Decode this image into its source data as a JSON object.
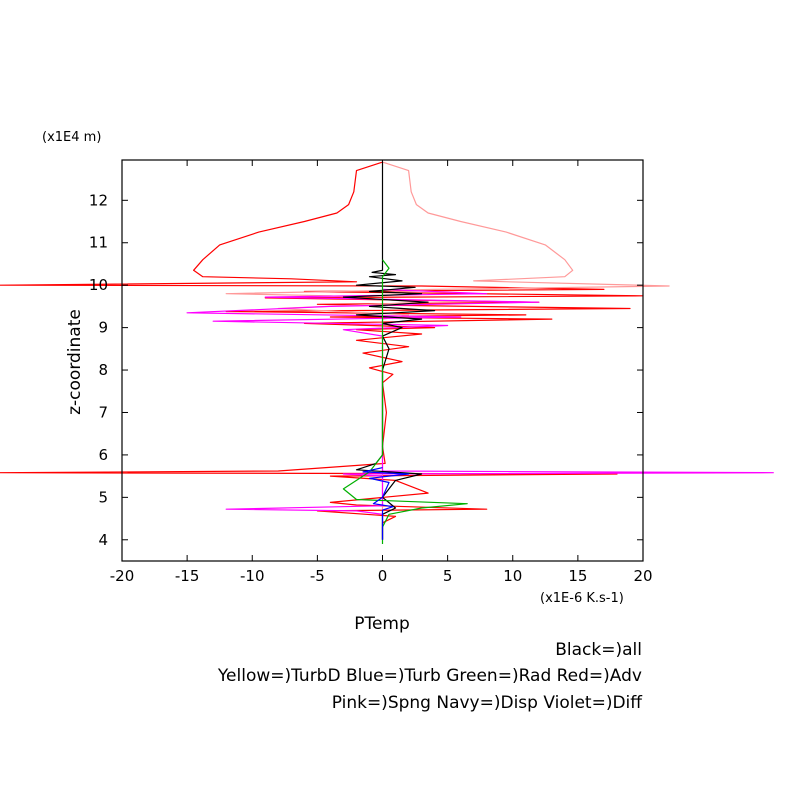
{
  "chart_data": {
    "type": "line",
    "title": "",
    "xlabel": "PTemp",
    "ylabel": "z-coordinate",
    "x_unit": "(x1E-6 K.s-1)",
    "y_unit": "(x1E4 m)",
    "xlim": [
      -20,
      20
    ],
    "ylim": [
      3.5,
      12.95
    ],
    "x_ticks": [
      "-20",
      "-15",
      "-10",
      "-5",
      "0",
      "5",
      "10",
      "15",
      "20"
    ],
    "y_ticks": [
      "4",
      "5",
      "6",
      "7",
      "8",
      "9",
      "10",
      "11",
      "12"
    ],
    "legend_lines": [
      "Black=)all",
      "Yellow=)TurbD Blue=)Turb Green=)Rad Red=)Adv",
      "Pink=)Spng Navy=)Disp Violet=)Diff"
    ],
    "series": [
      {
        "color": "#ff0000",
        "points": [
          [
            0,
            12.9
          ],
          [
            -2,
            12.7
          ],
          [
            -2.2,
            12.2
          ],
          [
            -2.6,
            11.9
          ],
          [
            -3.5,
            11.7
          ],
          [
            -6,
            11.5
          ],
          [
            -9.5,
            11.25
          ],
          [
            -12.5,
            10.95
          ],
          [
            -13.8,
            10.6
          ],
          [
            -14.5,
            10.35
          ],
          [
            -13.8,
            10.2
          ],
          [
            -7,
            10.15
          ],
          [
            -2,
            10.08
          ],
          [
            -30,
            10.0
          ],
          [
            3,
            9.98
          ],
          [
            17,
            9.9
          ],
          [
            -6,
            9.85
          ],
          [
            20,
            9.75
          ],
          [
            -9,
            9.7
          ],
          [
            12,
            9.6
          ],
          [
            -5,
            9.55
          ],
          [
            19,
            9.45
          ],
          [
            -12,
            9.38
          ],
          [
            11,
            9.3
          ],
          [
            -4,
            9.25
          ],
          [
            13,
            9.2
          ],
          [
            -6,
            9.1
          ],
          [
            4,
            9.0
          ],
          [
            -2,
            8.95
          ],
          [
            3,
            8.85
          ],
          [
            -2,
            8.7
          ],
          [
            2,
            8.55
          ],
          [
            -1.5,
            8.4
          ],
          [
            1.5,
            8.2
          ],
          [
            -1,
            8.05
          ],
          [
            0.8,
            7.9
          ],
          [
            0,
            7.7
          ],
          [
            0.3,
            7.0
          ],
          [
            0,
            6.2
          ],
          [
            0.2,
            5.8
          ],
          [
            -8,
            5.62
          ],
          [
            -30,
            5.58
          ],
          [
            18,
            5.55
          ],
          [
            -4,
            5.5
          ],
          [
            1,
            5.4
          ],
          [
            3.5,
            5.1
          ],
          [
            -4,
            4.88
          ],
          [
            -2,
            4.82
          ],
          [
            8,
            4.72
          ],
          [
            -5,
            4.68
          ],
          [
            1,
            4.55
          ],
          [
            0,
            4.4
          ],
          [
            0,
            4.0
          ]
        ]
      },
      {
        "color": "#ff9999",
        "points": [
          [
            0,
            12.9
          ],
          [
            2,
            12.7
          ],
          [
            2.2,
            12.2
          ],
          [
            2.6,
            11.9
          ],
          [
            3.5,
            11.7
          ],
          [
            6,
            11.5
          ],
          [
            9.5,
            11.25
          ],
          [
            12.5,
            10.95
          ],
          [
            14,
            10.6
          ],
          [
            14.6,
            10.35
          ],
          [
            14,
            10.2
          ],
          [
            7,
            10.1
          ],
          [
            22,
            9.98
          ],
          [
            4,
            9.9
          ],
          [
            -12,
            9.8
          ],
          [
            -4,
            9.75
          ],
          [
            3,
            9.6
          ],
          [
            -8,
            9.45
          ],
          [
            2,
            9.3
          ],
          [
            0,
            9.2
          ],
          [
            0,
            4.0
          ]
        ]
      },
      {
        "color": "#ff00ff",
        "points": [
          [
            0,
            9.9
          ],
          [
            8,
            9.8
          ],
          [
            -9,
            9.72
          ],
          [
            12,
            9.6
          ],
          [
            -4,
            9.5
          ],
          [
            -15,
            9.35
          ],
          [
            6,
            9.25
          ],
          [
            -13,
            9.15
          ],
          [
            5,
            9.05
          ],
          [
            -3,
            8.95
          ],
          [
            0,
            8.8
          ],
          [
            0,
            5.62
          ],
          [
            30,
            5.58
          ],
          [
            -3,
            5.55
          ],
          [
            0,
            5.5
          ],
          [
            0,
            4.8
          ],
          [
            -12,
            4.72
          ],
          [
            -2,
            4.68
          ],
          [
            0,
            4.6
          ]
        ]
      },
      {
        "color": "#000000",
        "points": [
          [
            0,
            12.9
          ],
          [
            0,
            10.35
          ],
          [
            -0.8,
            10.3
          ],
          [
            1,
            10.25
          ],
          [
            -1,
            10.2
          ],
          [
            1.5,
            10.1
          ],
          [
            -2,
            10.0
          ],
          [
            2.5,
            9.95
          ],
          [
            -1,
            9.85
          ],
          [
            3,
            9.8
          ],
          [
            -3,
            9.72
          ],
          [
            3.5,
            9.6
          ],
          [
            -1,
            9.5
          ],
          [
            4,
            9.4
          ],
          [
            -2,
            9.3
          ],
          [
            3,
            9.2
          ],
          [
            0,
            9.1
          ],
          [
            1.5,
            9.0
          ],
          [
            0,
            8.8
          ],
          [
            0.5,
            8.5
          ],
          [
            0,
            8.0
          ],
          [
            0,
            6.0
          ],
          [
            -0.5,
            5.8
          ],
          [
            -2,
            5.65
          ],
          [
            3,
            5.55
          ],
          [
            1,
            5.4
          ],
          [
            0,
            5.0
          ],
          [
            1,
            4.75
          ],
          [
            0,
            4.6
          ],
          [
            0,
            4.0
          ]
        ]
      },
      {
        "color": "#00b000",
        "points": [
          [
            0,
            10.6
          ],
          [
            0.5,
            10.4
          ],
          [
            0,
            10.2
          ],
          [
            0,
            6.0
          ],
          [
            -1,
            5.6
          ],
          [
            -3,
            5.2
          ],
          [
            -2,
            4.95
          ],
          [
            6.5,
            4.85
          ],
          [
            3,
            4.75
          ],
          [
            0.5,
            4.6
          ],
          [
            0,
            4.3
          ],
          [
            0,
            3.9
          ]
        ]
      },
      {
        "color": "#0000ff",
        "points": [
          [
            0,
            5.7
          ],
          [
            -1.5,
            5.6
          ],
          [
            2,
            5.55
          ],
          [
            -1,
            5.45
          ],
          [
            0.5,
            5.35
          ],
          [
            0,
            5.0
          ],
          [
            -0.7,
            4.85
          ],
          [
            0.8,
            4.78
          ],
          [
            0,
            4.7
          ],
          [
            0,
            4.0
          ]
        ]
      }
    ]
  }
}
